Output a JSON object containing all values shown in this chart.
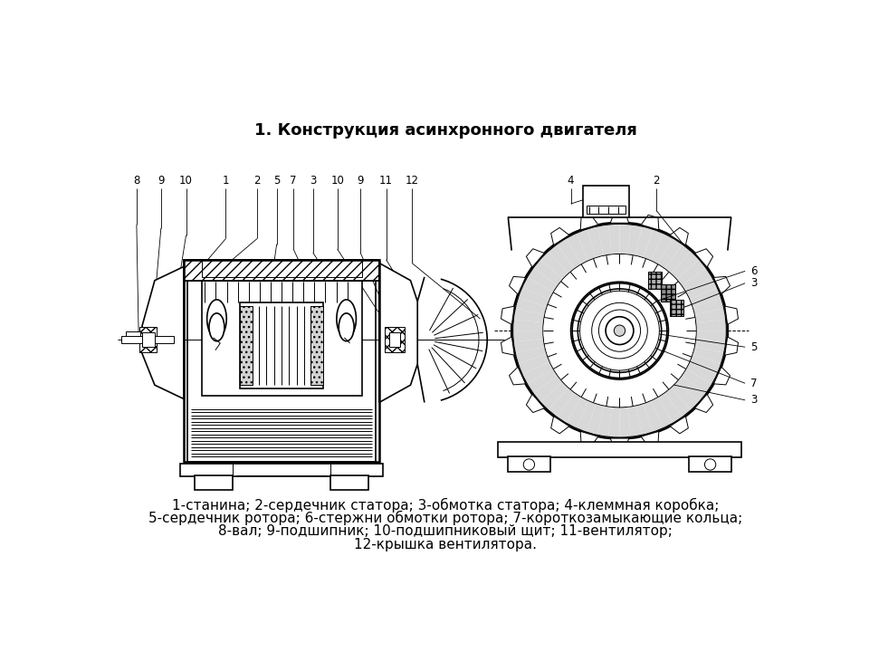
{
  "title": "1. Конструкция асинхронного двигателя",
  "caption_lines": [
    "1-станина; 2-сердечник статора; 3-обмотка статора; 4-клеммная коробка;",
    "5-сердечник ротора; 6-стержни обмотки ротора; 7-короткозамыкающие кольца;",
    "8-вал; 9-подшипник; 10-подшипниковый щит; 11-вентилятор;",
    "12-крышка вентилятора."
  ],
  "bg_color": "#ffffff",
  "line_color": "#000000",
  "title_fontsize": 13,
  "caption_fontsize": 11
}
